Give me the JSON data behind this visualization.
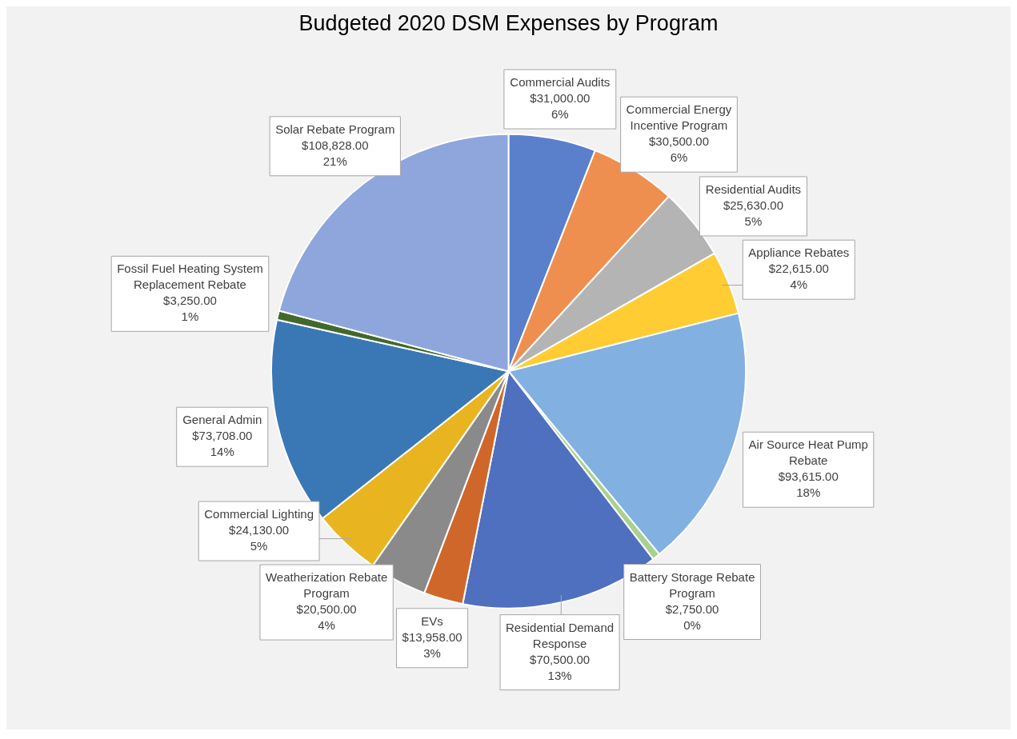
{
  "chart_data": {
    "type": "pie",
    "title": "Budgeted 2020 DSM Expenses by Program",
    "categories": [
      "Commercial Audits",
      "Commercial Energy Incentive Program",
      "Residential Audits",
      "Appliance Rebates",
      "Air Source Heat Pump Rebate",
      "Battery Storage Rebate Program",
      "Residential Demand Response",
      "EVs",
      "Weatherization Rebate Program",
      "Commercial Lighting",
      "General Admin",
      "Fossil Fuel Heating System Replacement Rebate",
      "Solar Rebate Program"
    ],
    "values": [
      31000,
      30500,
      25630,
      22615,
      93615,
      2750,
      70500,
      13958,
      20500,
      24130,
      73708,
      3250,
      108828
    ],
    "colors": [
      "#5a80cc",
      "#ef8f4f",
      "#b4b4b4",
      "#ffcc33",
      "#82b0e0",
      "#a9d18e",
      "#4f6fbf",
      "#d0672a",
      "#8a8a8a",
      "#e8b520",
      "#3a78b5",
      "#43682b",
      "#8ea6dc"
    ],
    "value_labels": [
      "$31,000.00\n6%",
      "$30,500.00\n6%",
      "$25,630.00\n5%",
      "$22,615.00\n4%",
      "$93,615.00\n18%",
      "$2,750.00\n0%",
      "$70,500.00\n13%",
      "$13,958.00\n3%",
      "$20,500.00\n4%",
      "$24,130.00\n5%",
      "$73,708.00\n14%",
      "$3,250.00\n1%",
      "$108,828.00\n21%"
    ],
    "legend": false
  }
}
